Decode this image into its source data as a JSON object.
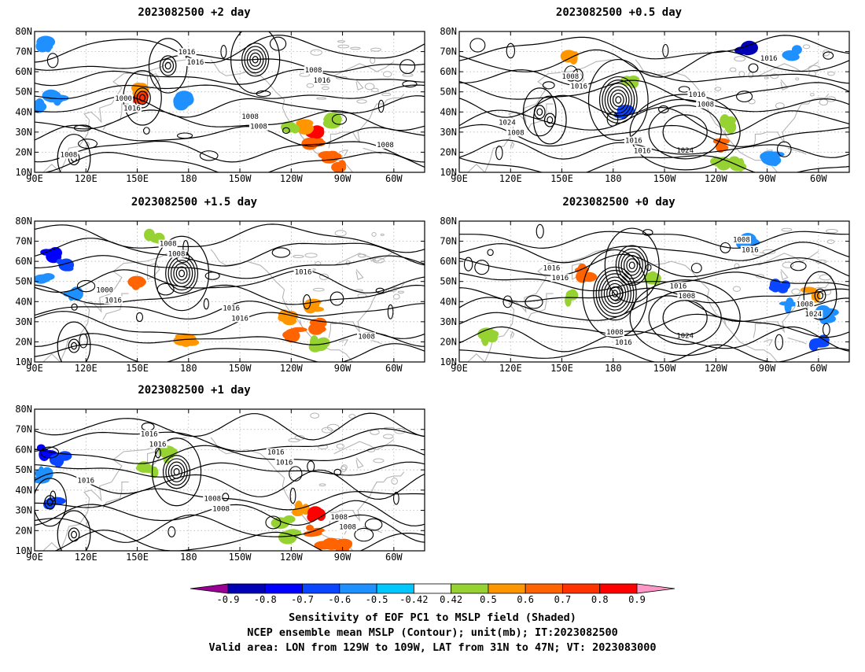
{
  "chart_data": {
    "type": "map",
    "panels": [
      {
        "title": "2023082500 +2 day",
        "contour_labels": [
          "1008",
          "1016",
          "1016",
          "1008",
          "1016",
          "1008",
          "1000",
          "1016",
          "1008",
          "1008"
        ],
        "highs": [],
        "lows": [
          {
            "lon": 153,
            "lat": 47,
            "rings": 3
          },
          {
            "lon": 168,
            "lat": 63,
            "rings": 3
          },
          {
            "lon": 219,
            "lat": 66,
            "rings": 5
          },
          {
            "lon": 113,
            "lat": 17,
            "rings": 2
          }
        ],
        "shading": [
          {
            "lon": 150,
            "lat": 50,
            "v": 0.6
          },
          {
            "lon": 151,
            "lat": 48,
            "v": 0.72
          },
          {
            "lon": 252,
            "lat": 25,
            "v": 0.62
          },
          {
            "lon": 254,
            "lat": 30,
            "v": 0.85
          },
          {
            "lon": 248,
            "lat": 33,
            "v": 0.55
          },
          {
            "lon": 241,
            "lat": 31,
            "v": 0.5
          },
          {
            "lon": 262,
            "lat": 17,
            "v": 0.65
          },
          {
            "lon": 268,
            "lat": 12,
            "v": 0.62
          },
          {
            "lon": 265,
            "lat": 36,
            "v": 0.5
          },
          {
            "lon": 177,
            "lat": 46,
            "v": -0.55
          },
          {
            "lon": 102,
            "lat": 47,
            "v": -0.5
          },
          {
            "lon": 95,
            "lat": 42,
            "v": -0.5
          },
          {
            "lon": 97,
            "lat": 73,
            "v": -0.5
          }
        ]
      },
      {
        "title": "2023082500 +0.5 day",
        "contour_labels": [
          "1008",
          "1016",
          "1016",
          "1008",
          "1016",
          "1024",
          "1008",
          "1016",
          "1016"
        ],
        "highs": [
          {
            "lon": 222,
            "lat": 30,
            "label": "1024"
          }
        ],
        "lows": [
          {
            "lon": 183,
            "lat": 46,
            "rings": 7
          },
          {
            "lon": 137,
            "lat": 40,
            "rings": 2
          },
          {
            "lon": 143,
            "lat": 36,
            "rings": 2
          }
        ],
        "shading": [
          {
            "lon": 246,
            "lat": 24,
            "v": 0.62
          },
          {
            "lon": 243,
            "lat": 15,
            "v": 0.5
          },
          {
            "lon": 253,
            "lat": 14,
            "v": 0.5
          },
          {
            "lon": 248,
            "lat": 34,
            "v": 0.5
          },
          {
            "lon": 190,
            "lat": 56,
            "v": 0.5
          },
          {
            "lon": 156,
            "lat": 68,
            "v": 0.55
          },
          {
            "lon": 185,
            "lat": 40,
            "v": -0.6
          },
          {
            "lon": 258,
            "lat": 70,
            "v": -0.8
          },
          {
            "lon": 286,
            "lat": 69,
            "v": -0.5
          },
          {
            "lon": 272,
            "lat": 17,
            "v": -0.5
          }
        ]
      },
      {
        "title": "2023082500 +1.5 day",
        "contour_labels": [
          "1016",
          "1008",
          "1016",
          "1016",
          "1008",
          "1000",
          "1008",
          "1016"
        ],
        "highs": [],
        "lows": [
          {
            "lon": 176,
            "lat": 54,
            "rings": 6
          },
          {
            "lon": 113,
            "lat": 18,
            "rings": 2
          }
        ],
        "shading": [
          {
            "lon": 100,
            "lat": 63,
            "v": -0.75
          },
          {
            "lon": 108,
            "lat": 58,
            "v": -0.62
          },
          {
            "lon": 95,
            "lat": 52,
            "v": -0.55
          },
          {
            "lon": 112,
            "lat": 43,
            "v": -0.5
          },
          {
            "lon": 150,
            "lat": 49,
            "v": 0.62
          },
          {
            "lon": 179,
            "lat": 21,
            "v": 0.6
          },
          {
            "lon": 238,
            "lat": 32,
            "v": 0.55
          },
          {
            "lon": 242,
            "lat": 25,
            "v": 0.62
          },
          {
            "lon": 254,
            "lat": 28,
            "v": 0.68
          },
          {
            "lon": 252,
            "lat": 38,
            "v": 0.55
          },
          {
            "lon": 256,
            "lat": 18,
            "v": 0.5
          },
          {
            "lon": 160,
            "lat": 72,
            "v": 0.5
          }
        ]
      },
      {
        "title": "2023082500 +0 day",
        "contour_labels": [
          "1016",
          "1016",
          "1008",
          "1016",
          "1024",
          "1016",
          "1008",
          "1016",
          "1008",
          "1008"
        ],
        "highs": [
          {
            "lon": 222,
            "lat": 32,
            "label": "1024"
          }
        ],
        "lows": [
          {
            "lon": 181,
            "lat": 44,
            "rings": 8
          },
          {
            "lon": 191,
            "lat": 58,
            "rings": 6
          },
          {
            "lon": 301,
            "lat": 43,
            "rings": 2
          }
        ],
        "shading": [
          {
            "lon": 163,
            "lat": 54,
            "v": 0.62
          },
          {
            "lon": 206,
            "lat": 52,
            "v": 0.5
          },
          {
            "lon": 278,
            "lat": 47,
            "v": -0.6
          },
          {
            "lon": 282,
            "lat": 38,
            "v": -0.5
          },
          {
            "lon": 300,
            "lat": 20,
            "v": -0.62
          },
          {
            "lon": 259,
            "lat": 69,
            "v": -0.55
          },
          {
            "lon": 297,
            "lat": 44,
            "v": 0.6
          },
          {
            "lon": 108,
            "lat": 22,
            "v": 0.5
          },
          {
            "lon": 156,
            "lat": 42,
            "v": 0.5
          },
          {
            "lon": 305,
            "lat": 33,
            "v": -0.5
          }
        ]
      },
      {
        "title": "2023082500 +1 day",
        "contour_labels": [
          "1016",
          "1008",
          "1016",
          "1008",
          "1016",
          "1016",
          "1008",
          "1016",
          "1008"
        ],
        "highs": [],
        "lows": [
          {
            "lon": 173,
            "lat": 49,
            "rings": 5
          },
          {
            "lon": 113,
            "lat": 18,
            "rings": 2
          },
          {
            "lon": 99,
            "lat": 34,
            "rings": 2
          }
        ],
        "shading": [
          {
            "lon": 97,
            "lat": 59,
            "v": -0.7
          },
          {
            "lon": 105,
            "lat": 56,
            "v": -0.6
          },
          {
            "lon": 100,
            "lat": 34,
            "v": -0.6
          },
          {
            "lon": 95,
            "lat": 47,
            "v": -0.5
          },
          {
            "lon": 246,
            "lat": 30,
            "v": 0.55
          },
          {
            "lon": 255,
            "lat": 27,
            "v": 0.85
          },
          {
            "lon": 253,
            "lat": 20,
            "v": 0.7
          },
          {
            "lon": 262,
            "lat": 14,
            "v": 0.65
          },
          {
            "lon": 272,
            "lat": 13,
            "v": 0.62
          },
          {
            "lon": 236,
            "lat": 25,
            "v": 0.5
          },
          {
            "lon": 240,
            "lat": 17,
            "v": 0.5
          },
          {
            "lon": 157,
            "lat": 50,
            "v": 0.5
          },
          {
            "lon": 170,
            "lat": 57,
            "v": 0.5
          }
        ]
      }
    ],
    "x_ticks": [
      "90E",
      "120E",
      "150E",
      "180",
      "150W",
      "120W",
      "90W",
      "60W"
    ],
    "x_tick_lons": [
      90,
      120,
      150,
      180,
      210,
      240,
      270,
      300
    ],
    "y_ticks": [
      "10N",
      "20N",
      "30N",
      "40N",
      "50N",
      "60N",
      "70N",
      "80N"
    ],
    "y_tick_lats": [
      10,
      20,
      30,
      40,
      50,
      60,
      70,
      80
    ],
    "lon_range": [
      90,
      318
    ],
    "lat_range": [
      10,
      80
    ],
    "colorbar": {
      "labels": [
        "-0.9",
        "-0.8",
        "-0.7",
        "-0.6",
        "-0.5",
        "-0.42",
        "0.42",
        "0.5",
        "0.6",
        "0.7",
        "0.8",
        "0.9"
      ],
      "colors": [
        "#9b0096",
        "#0000b4",
        "#0000ff",
        "#0a46ff",
        "#1e90ff",
        "#00c8ff",
        "#ffffff",
        "#96d232",
        "#ff9600",
        "#ff6400",
        "#ff3200",
        "#ff0000",
        "#ff96c8"
      ]
    },
    "caption": [
      "Sensitivity of EOF PC1 to MSLP field (Shaded)",
      "NCEP ensemble mean MSLP (Contour); unit(mb); IT:2023082500",
      "Valid area: LON from 129W to 109W, LAT from 31N to 47N; VT: 2023083000"
    ]
  }
}
